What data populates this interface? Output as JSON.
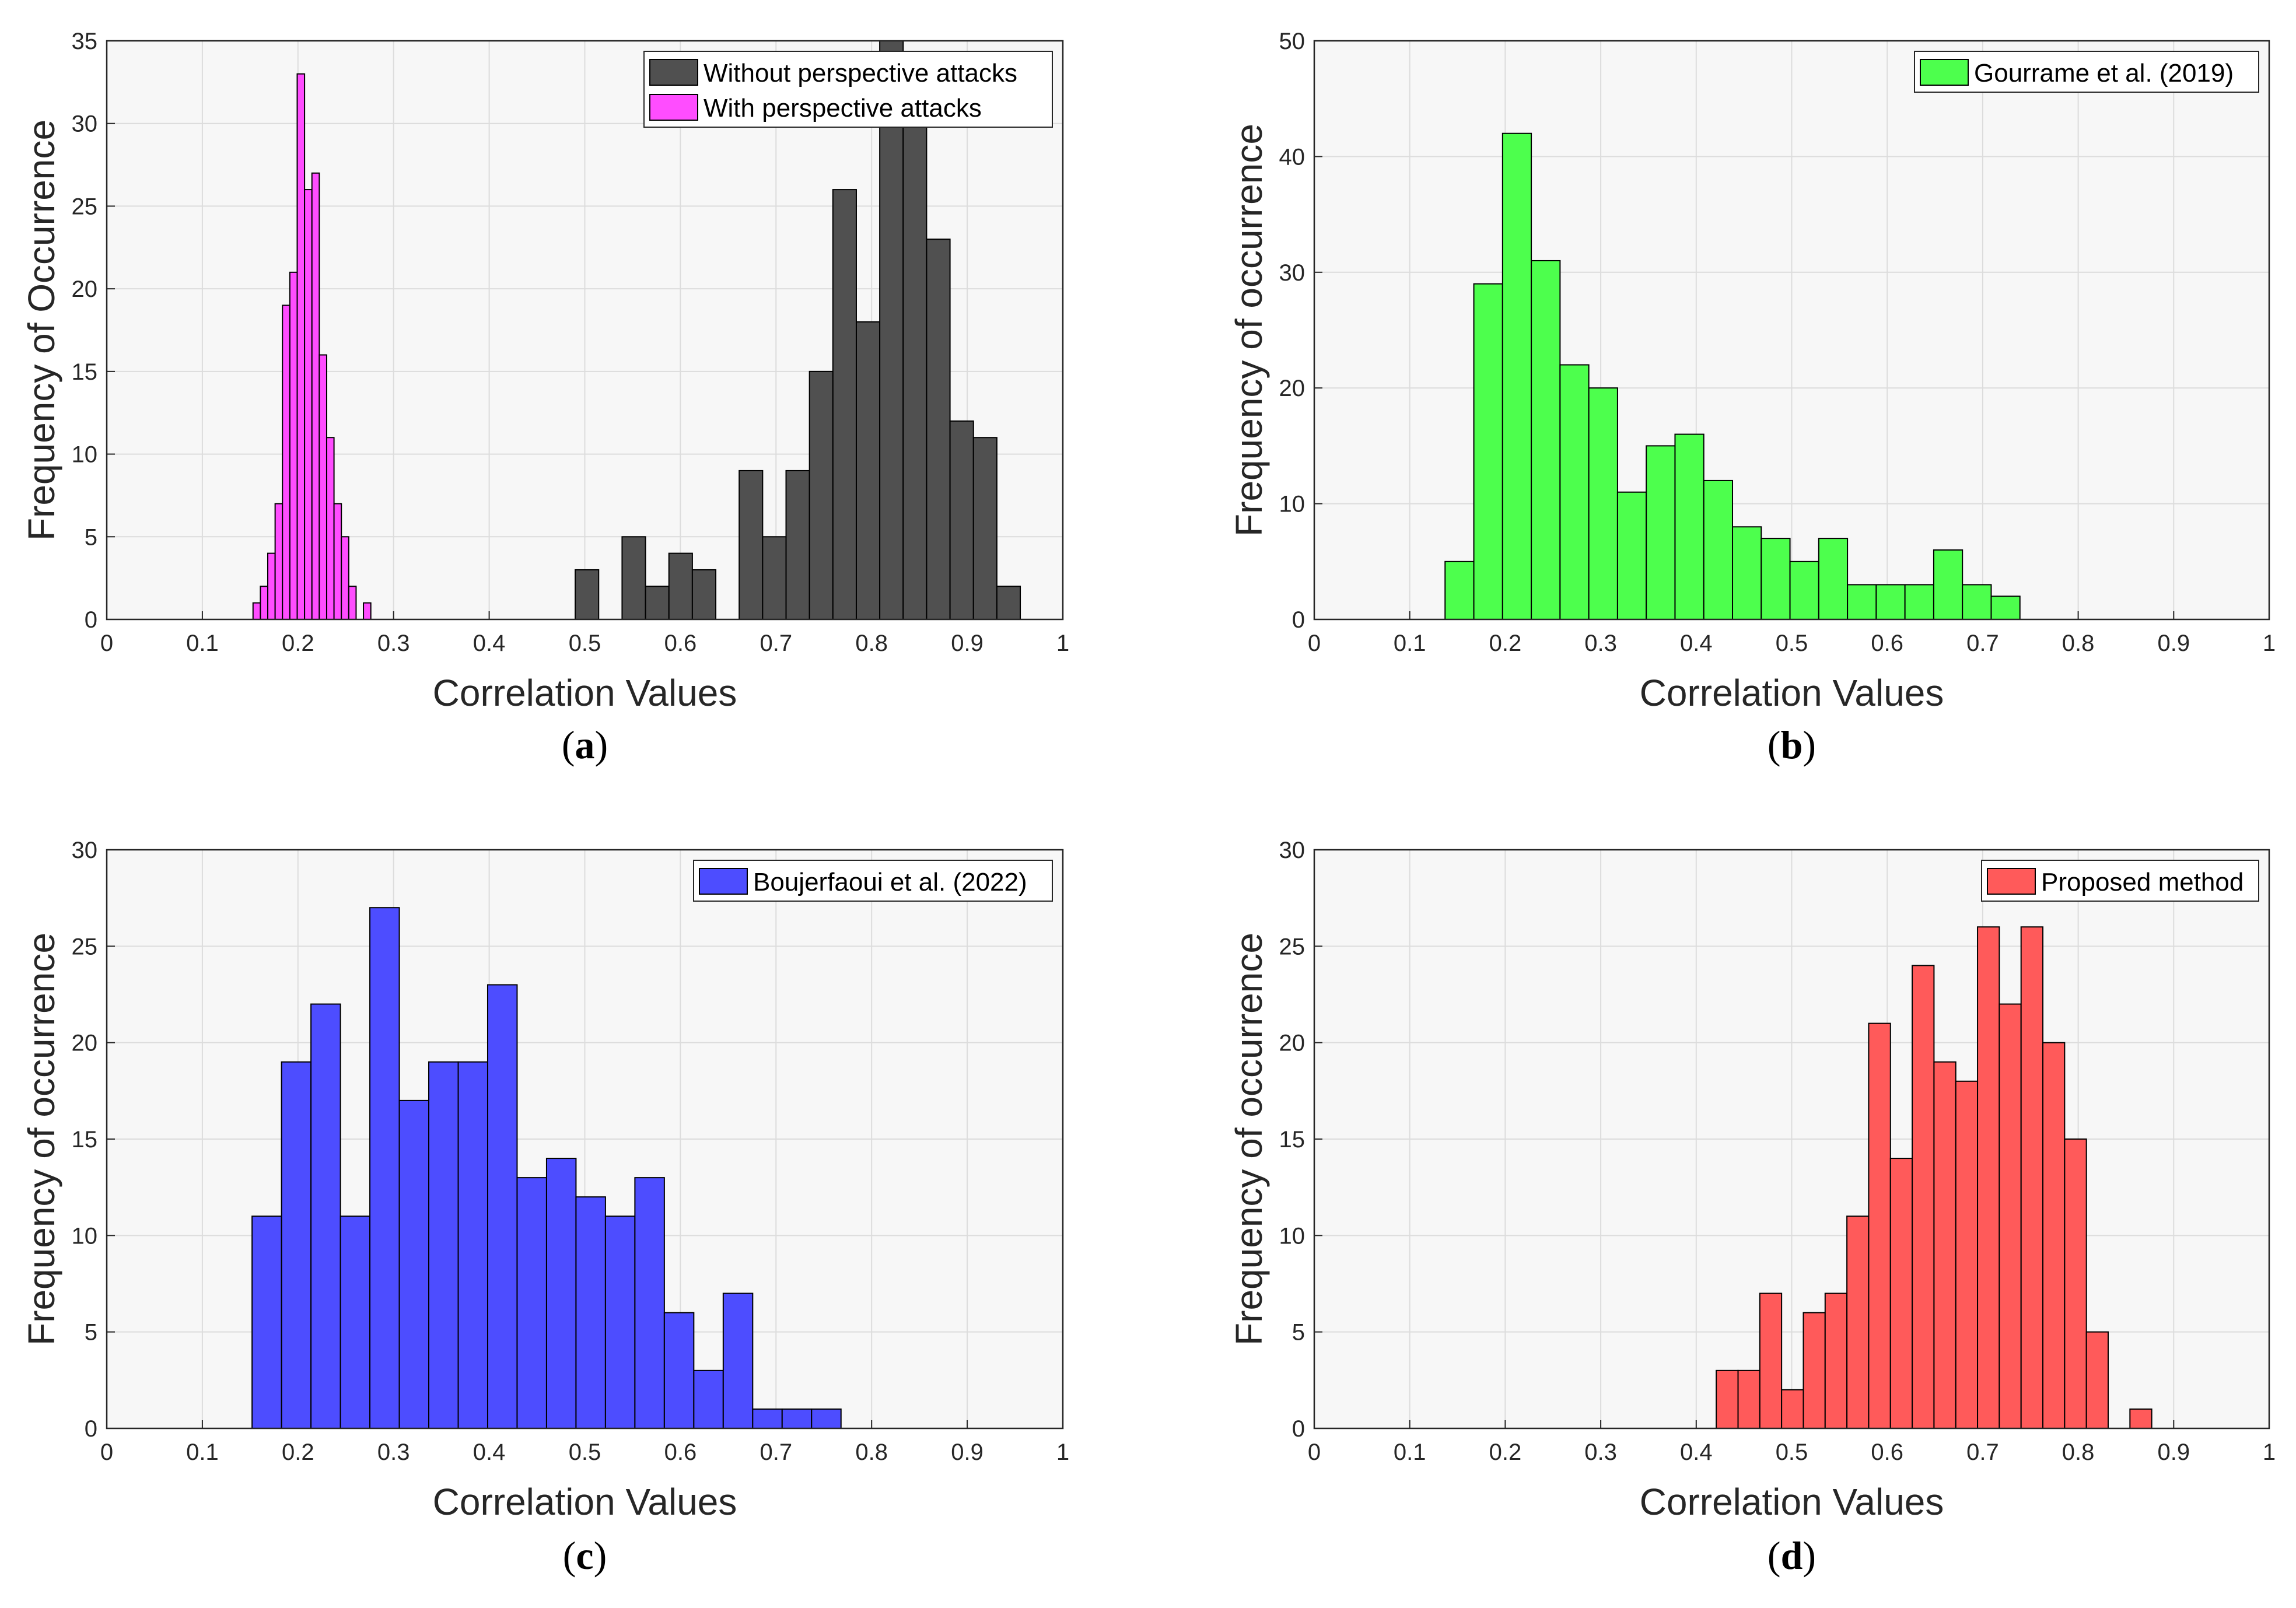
{
  "chart_data": [
    {
      "type": "bar",
      "panel": "a",
      "caption": "(a)",
      "caption_letter": "a",
      "xlabel": "Correlation Values",
      "ylabel": "Frequency of Occurrence",
      "xlim": [
        0,
        1
      ],
      "ylim": [
        0,
        35
      ],
      "xticks": [
        "0",
        "0.1",
        "0.2",
        "0.3",
        "0.4",
        "0.5",
        "0.6",
        "0.7",
        "0.8",
        "0.9",
        "1"
      ],
      "yticks": [
        "0",
        "5",
        "10",
        "15",
        "20",
        "25",
        "30",
        "35"
      ],
      "grid": true,
      "legend_position": "top-right",
      "series": [
        {
          "name": "Without perspective attacks",
          "color": "#505050",
          "bin_start": 0.49,
          "bin_width": 0.0245,
          "values": [
            3,
            0,
            5,
            2,
            4,
            3,
            0,
            9,
            5,
            9,
            15,
            26,
            18,
            35,
            32,
            23,
            12,
            11,
            2
          ]
        },
        {
          "name": "With perspective attacks",
          "color": "#ff4dff",
          "bin_start": 0.153,
          "bin_width": 0.0077,
          "values": [
            1,
            2,
            4,
            7,
            19,
            21,
            33,
            26,
            27,
            16,
            11,
            7,
            5,
            2,
            0,
            1
          ]
        }
      ]
    },
    {
      "type": "bar",
      "panel": "b",
      "caption": "(b)",
      "caption_letter": "b",
      "xlabel": "Correlation Values",
      "ylabel": "Frequency of occurrence",
      "xlim": [
        0,
        1
      ],
      "ylim": [
        0,
        50
      ],
      "xticks": [
        "0",
        "0.1",
        "0.2",
        "0.3",
        "0.4",
        "0.5",
        "0.6",
        "0.7",
        "0.8",
        "0.9",
        "1"
      ],
      "yticks": [
        "0",
        "10",
        "20",
        "30",
        "40",
        "50"
      ],
      "grid": true,
      "legend_position": "top-right",
      "series": [
        {
          "name": "Gourrame et al. (2019)",
          "color": "#4dff4d",
          "bin_start": 0.137,
          "bin_width": 0.0301,
          "values": [
            5,
            29,
            42,
            31,
            22,
            20,
            11,
            15,
            16,
            12,
            8,
            7,
            5,
            7,
            3,
            3,
            3,
            6,
            3,
            2
          ]
        }
      ]
    },
    {
      "type": "bar",
      "panel": "c",
      "caption": "(c)",
      "caption_letter": "c",
      "xlabel": "Correlation Values",
      "ylabel": "Frequency of occurrence",
      "xlim": [
        0,
        1
      ],
      "ylim": [
        0,
        30
      ],
      "xticks": [
        "0",
        "0.1",
        "0.2",
        "0.3",
        "0.4",
        "0.5",
        "0.6",
        "0.7",
        "0.8",
        "0.9",
        "1"
      ],
      "yticks": [
        "0",
        "5",
        "10",
        "15",
        "20",
        "25",
        "30"
      ],
      "grid": true,
      "legend_position": "top-right",
      "series": [
        {
          "name": "Boujerfaoui et al. (2022)",
          "color": "#4d4dff",
          "bin_start": 0.152,
          "bin_width": 0.0308,
          "values": [
            11,
            19,
            22,
            11,
            27,
            17,
            19,
            19,
            23,
            13,
            14,
            12,
            11,
            13,
            6,
            3,
            7,
            1,
            1,
            1
          ]
        }
      ]
    },
    {
      "type": "bar",
      "panel": "d",
      "caption": "(d)",
      "caption_letter": "d",
      "xlabel": "Correlation Values",
      "ylabel": "Frequency of occurrence",
      "xlim": [
        0,
        1
      ],
      "ylim": [
        0,
        30
      ],
      "xticks": [
        "0",
        "0.1",
        "0.2",
        "0.3",
        "0.4",
        "0.5",
        "0.6",
        "0.7",
        "0.8",
        "0.9",
        "1"
      ],
      "yticks": [
        "0",
        "5",
        "10",
        "15",
        "20",
        "25",
        "30"
      ],
      "grid": true,
      "legend_position": "top-right",
      "series": [
        {
          "name": "Proposed method",
          "color": "#ff5a5a",
          "bin_start": 0.421,
          "bin_width": 0.0228,
          "values": [
            3,
            3,
            7,
            2,
            6,
            7,
            11,
            21,
            14,
            24,
            19,
            18,
            26,
            22,
            26,
            20,
            15,
            5,
            0,
            1
          ]
        }
      ]
    }
  ]
}
